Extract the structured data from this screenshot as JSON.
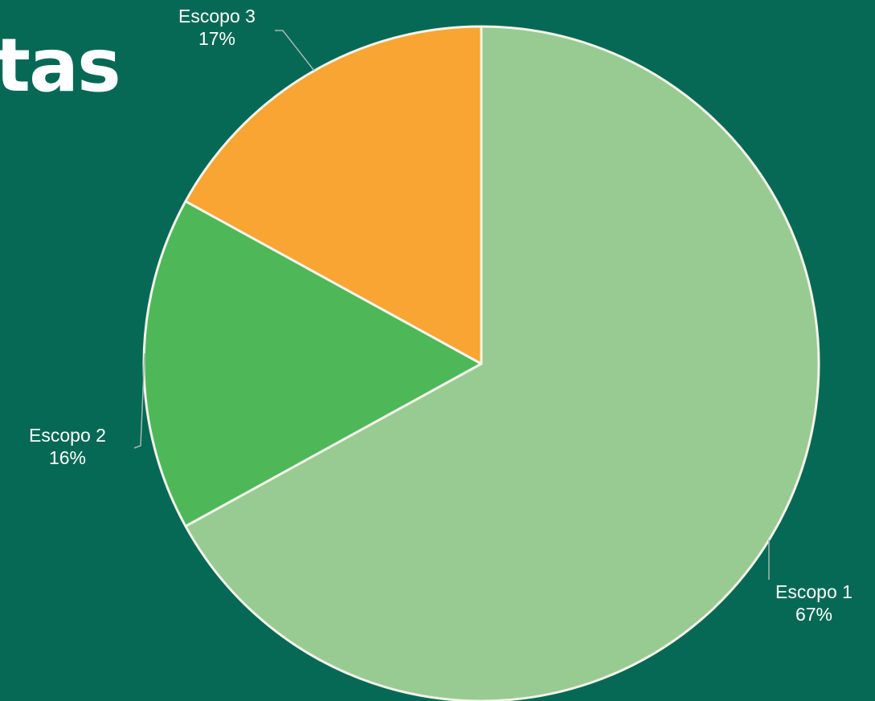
{
  "header": {
    "title_fragment": "tas"
  },
  "chart_data": {
    "type": "pie",
    "categories": [
      "Escopo 1",
      "Escopo 2",
      "Escopo 3"
    ],
    "values": [
      67,
      16,
      17
    ],
    "value_labels": [
      "67%",
      "16%",
      "17%"
    ],
    "colors": [
      "#98cb91",
      "#4eb859",
      "#f8a533"
    ],
    "start_angle_deg": 0,
    "direction": "clockwise",
    "legend": "none"
  }
}
